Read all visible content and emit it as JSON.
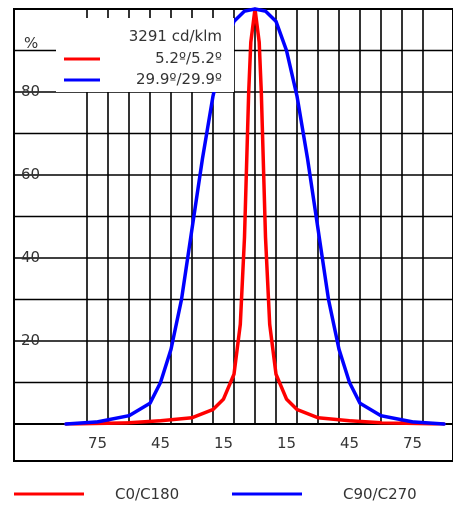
{
  "chart_data": {
    "type": "line",
    "x_unit": "°",
    "y_unit": "%",
    "xlim": [
      -90,
      90
    ],
    "ylim": [
      0,
      100
    ],
    "x_ticks": [
      -75,
      -45,
      -15,
      15,
      45,
      75
    ],
    "x_tick_labels": [
      "75",
      "45",
      "15",
      "15",
      "45",
      "75"
    ],
    "y_ticks": [
      20,
      40,
      60,
      80
    ],
    "y_tick_labels": [
      "20",
      "40",
      "60",
      "80"
    ],
    "ylabel": "%",
    "grid": true,
    "legend_inside": {
      "header": "3291 cd/klm",
      "entries": [
        {
          "label": "5.2º/5.2º",
          "color": "#ff0000"
        },
        {
          "label": "29.9º/29.9º",
          "color": "#0000ff"
        }
      ]
    },
    "legend_bottom": [
      {
        "label": "C0/C180",
        "color": "#ff0000"
      },
      {
        "label": "C90/C270",
        "color": "#0000ff"
      }
    ],
    "series": [
      {
        "color": "#ff0000",
        "x": [
          -90,
          -60,
          -45,
          -30,
          -20,
          -15,
          -10,
          -7,
          -5,
          -3,
          -2,
          0,
          2,
          3,
          5,
          7,
          10,
          15,
          20,
          30,
          45,
          60,
          90
        ],
        "y": [
          0,
          0.3,
          0.8,
          1.5,
          3.5,
          6,
          12,
          24,
          45,
          80,
          92,
          100,
          92,
          80,
          45,
          24,
          12,
          6,
          3.5,
          1.5,
          0.8,
          0.3,
          0
        ]
      },
      {
        "color": "#0000ff",
        "x": [
          -90,
          -75,
          -60,
          -50,
          -45,
          -40,
          -35,
          -30,
          -25,
          -20,
          -15,
          -10,
          -5,
          0,
          5,
          10,
          15,
          20,
          25,
          30,
          35,
          40,
          45,
          50,
          60,
          75,
          90
        ],
        "y": [
          0,
          0.5,
          2,
          5,
          10,
          18,
          30,
          47,
          64,
          79,
          90,
          97,
          99.5,
          100,
          99.5,
          97,
          90,
          79,
          64,
          47,
          30,
          18,
          10,
          5,
          2,
          0.5,
          0
        ]
      }
    ]
  }
}
